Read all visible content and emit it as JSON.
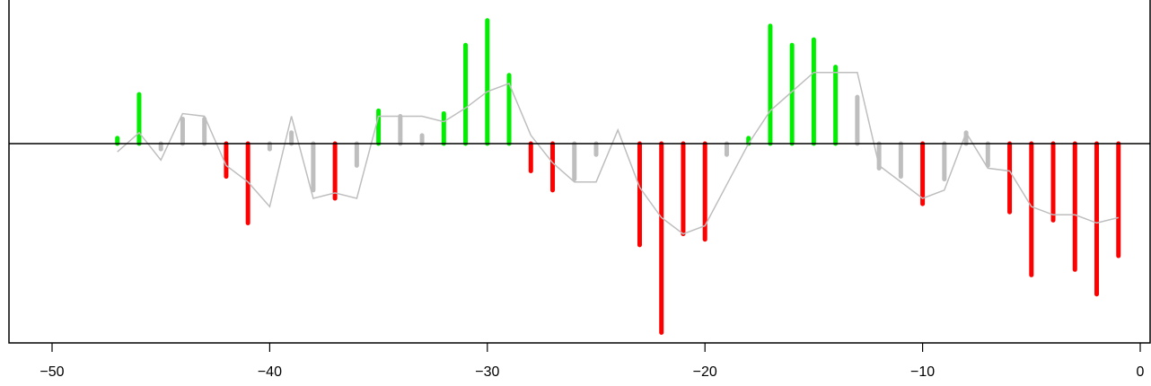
{
  "chart_data": {
    "type": "bar",
    "title": "",
    "xlabel": "",
    "ylabel": "",
    "xlim": [
      -50,
      0.5
    ],
    "ylim": [
      -0.9,
      0.55
    ],
    "x_ticks": [
      -50,
      -40,
      -30,
      -20,
      -10,
      0
    ],
    "x_tick_labels": [
      "−50",
      "−40",
      "−30",
      "−20",
      "−10",
      "0"
    ],
    "grid": false,
    "legend": "none",
    "colors": {
      "positive": "#00ee00",
      "negative": "#ff0000",
      "neutral": "#bebebe",
      "smooth_line": "#bebebe",
      "axis": "#000000"
    },
    "series": [
      {
        "kind": "bars",
        "x": [
          -47,
          -46,
          -45,
          -44,
          -43,
          -42,
          -41,
          -40,
          -39,
          -38,
          -37,
          -36,
          -35,
          -34,
          -33,
          -32,
          -31,
          -30,
          -29,
          -28,
          -27,
          -26,
          -25,
          -24,
          -23,
          -22,
          -21,
          -20,
          -19,
          -18,
          -17,
          -16,
          -15,
          -14,
          -13,
          -12,
          -11,
          -10,
          -9,
          -8,
          -7,
          -6,
          -5,
          -4,
          -3,
          -2,
          -1
        ],
        "values": [
          0.02,
          0.18,
          -0.02,
          0.09,
          0.09,
          -0.12,
          -0.29,
          -0.02,
          0.04,
          -0.17,
          -0.2,
          -0.08,
          0.12,
          0.1,
          0.03,
          0.11,
          0.36,
          0.45,
          0.25,
          -0.1,
          -0.17,
          -0.13,
          -0.04,
          0.0,
          -0.37,
          -0.69,
          -0.33,
          -0.35,
          -0.04,
          0.02,
          0.43,
          0.36,
          0.38,
          0.28,
          0.17,
          -0.09,
          -0.12,
          -0.22,
          -0.13,
          0.04,
          -0.08,
          -0.25,
          -0.48,
          -0.28,
          -0.46,
          -0.55,
          -0.41
        ],
        "value_colors": [
          "positive",
          "positive",
          "neutral",
          "neutral",
          "neutral",
          "negative",
          "negative",
          "neutral",
          "neutral",
          "neutral",
          "negative",
          "neutral",
          "positive",
          "neutral",
          "neutral",
          "positive",
          "positive",
          "positive",
          "positive",
          "negative",
          "negative",
          "neutral",
          "neutral",
          "neutral",
          "negative",
          "negative",
          "negative",
          "negative",
          "neutral",
          "positive",
          "positive",
          "positive",
          "positive",
          "positive",
          "neutral",
          "neutral",
          "neutral",
          "negative",
          "neutral",
          "neutral",
          "neutral",
          "negative",
          "negative",
          "negative",
          "negative",
          "negative",
          "negative"
        ]
      },
      {
        "kind": "line",
        "x": [
          -47,
          -46,
          -45,
          -44,
          -43,
          -42,
          -41,
          -40,
          -39,
          -38,
          -37,
          -36,
          -35,
          -34,
          -33,
          -32,
          -31,
          -30,
          -29,
          -28,
          -27,
          -26,
          -25,
          -24,
          -23,
          -22,
          -21,
          -20,
          -19,
          -18,
          -17,
          -16,
          -15,
          -14,
          -13,
          -12,
          -11,
          -10,
          -9,
          -8,
          -7,
          -6,
          -5,
          -4,
          -3,
          -2,
          -1
        ],
        "values": [
          -0.03,
          0.04,
          -0.06,
          0.11,
          0.1,
          -0.08,
          -0.14,
          -0.23,
          0.1,
          -0.2,
          -0.18,
          -0.2,
          0.1,
          0.1,
          0.1,
          0.08,
          0.13,
          0.19,
          0.22,
          0.03,
          -0.07,
          -0.14,
          -0.14,
          0.05,
          -0.16,
          -0.27,
          -0.33,
          -0.3,
          -0.15,
          0.0,
          0.12,
          0.19,
          0.26,
          0.26,
          0.26,
          -0.08,
          -0.14,
          -0.2,
          -0.17,
          0.04,
          -0.09,
          -0.1,
          -0.23,
          -0.26,
          -0.26,
          -0.29,
          -0.27
        ]
      }
    ]
  }
}
